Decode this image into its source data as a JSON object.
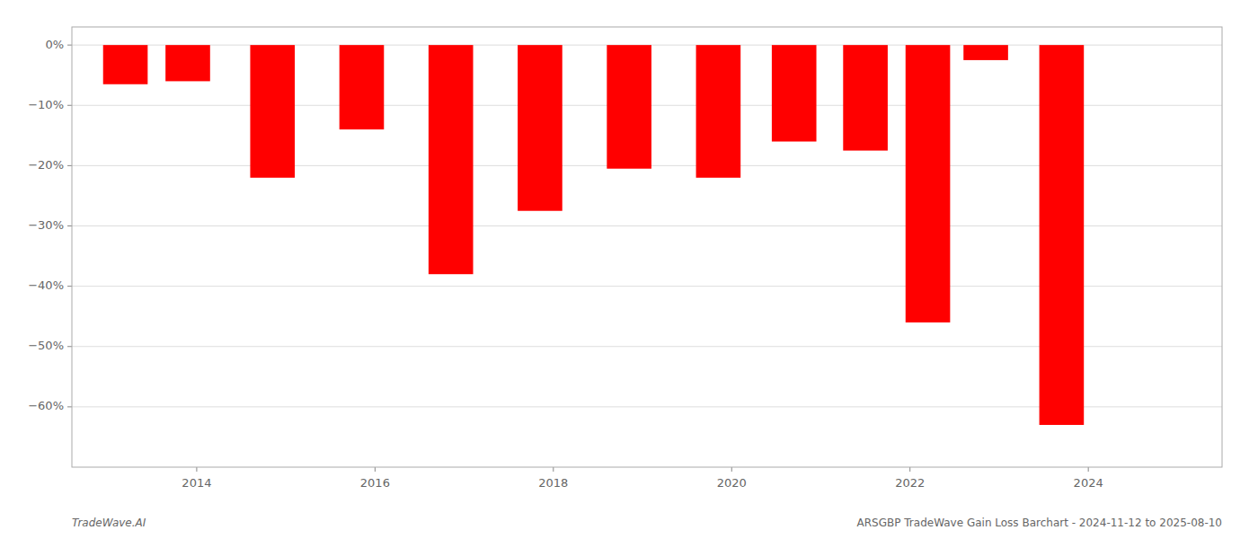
{
  "chart_data": {
    "type": "bar",
    "x": [
      2013.2,
      2013.9,
      2014.85,
      2015.85,
      2016.85,
      2017.85,
      2018.85,
      2019.85,
      2020.7,
      2021.5,
      2022.2,
      2022.85,
      2023.7
    ],
    "values": [
      -6.5,
      -6.0,
      -22.0,
      -14.0,
      -38.0,
      -27.5,
      -20.5,
      -22.0,
      -16.0,
      -17.5,
      -46.0,
      -2.5,
      -63.0
    ],
    "color": "#FF0000",
    "xlim": [
      2012.6,
      2025.5
    ],
    "xticks": [
      2014,
      2016,
      2018,
      2020,
      2022,
      2024
    ],
    "ylim": [
      -70,
      3
    ],
    "yticks": [
      {
        "value": 0,
        "label": "0%"
      },
      {
        "value": -10,
        "label": "−10%"
      },
      {
        "value": -20,
        "label": "−20%"
      },
      {
        "value": -30,
        "label": "−30%"
      },
      {
        "value": -40,
        "label": "−40%"
      },
      {
        "value": -50,
        "label": "−50%"
      },
      {
        "value": -60,
        "label": "−60%"
      }
    ],
    "grid": true,
    "annotations": [
      "TradeWave.AI",
      "ARSGBP TradeWave Gain Loss Barchart - 2024-11-12 to 2025-08-10"
    ]
  }
}
